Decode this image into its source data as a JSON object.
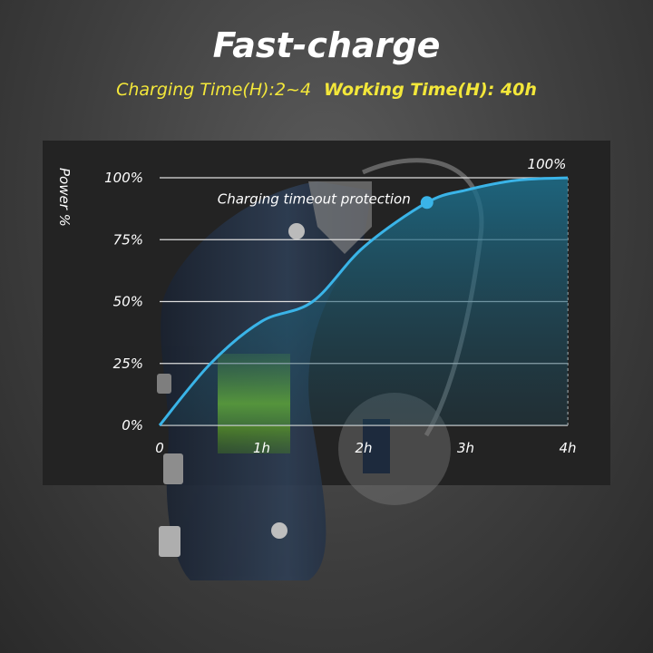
{
  "header": {
    "title": "Fast-charge",
    "charging_time": "Charging Time(H):2~4",
    "working_time": "Working Time(H): 40h"
  },
  "colors": {
    "curve": "#3ab4e8",
    "subtitle": "#f3e73a"
  },
  "chart_data": {
    "type": "area",
    "ylabel": "Power %",
    "xlabel": "",
    "x_ticks": [
      "0",
      "1h",
      "2h",
      "3h",
      "4h"
    ],
    "y_ticks": [
      "0%",
      "25%",
      "50%",
      "75%",
      "100%"
    ],
    "xlim": [
      0,
      4
    ],
    "ylim": [
      0,
      100
    ],
    "grid": true,
    "series": [
      {
        "x": [
          0,
          0.5,
          1.0,
          1.5,
          2.0,
          2.62,
          3.0,
          3.5,
          4.0
        ],
        "y": [
          0,
          25,
          42,
          50,
          72,
          90,
          95,
          99,
          100
        ]
      }
    ],
    "annotations": [
      {
        "text": "Charging timeout protection",
        "x": 2.62,
        "y": 90
      },
      {
        "text": "100%",
        "x": 4,
        "y": 100
      }
    ]
  }
}
